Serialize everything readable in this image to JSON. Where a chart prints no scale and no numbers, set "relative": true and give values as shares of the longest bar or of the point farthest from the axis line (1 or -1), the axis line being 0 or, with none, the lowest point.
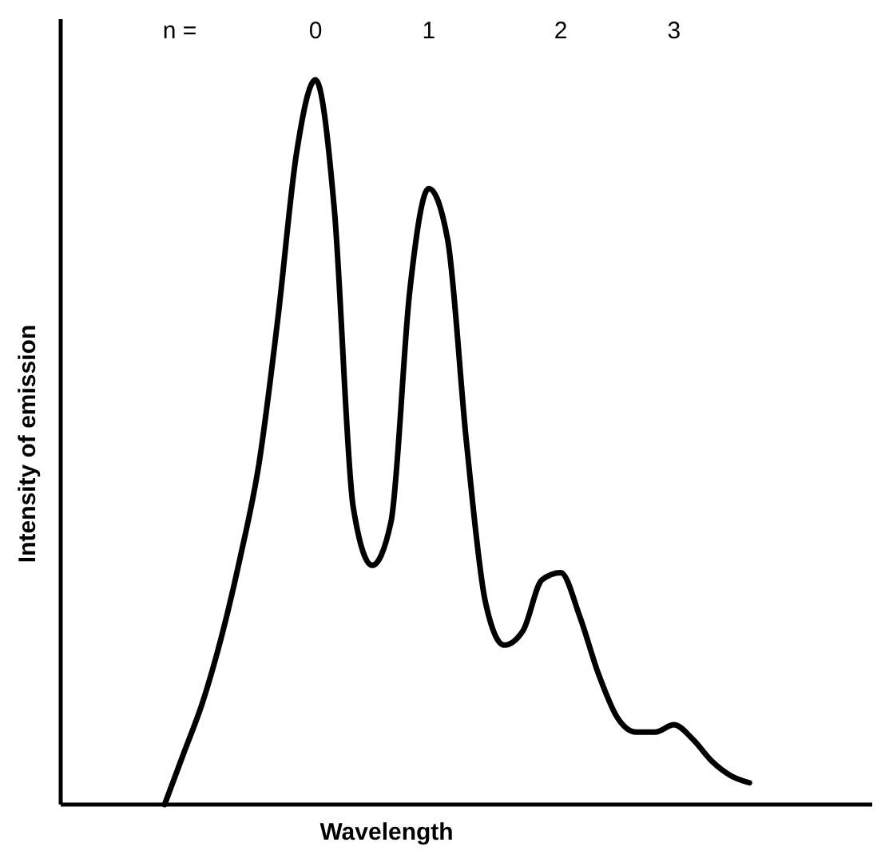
{
  "chart_data": {
    "type": "line",
    "relative": true,
    "xlabel": "Wavelength",
    "ylabel": "Intensity of emission",
    "annotations": [
      "n =",
      "0",
      "1",
      "2",
      "3"
    ],
    "categories": [
      null,
      null,
      null,
      null,
      null,
      null,
      null,
      null,
      null,
      null,
      null,
      null,
      null,
      null,
      null,
      null,
      null,
      null,
      null,
      null,
      null,
      null,
      null,
      null,
      null,
      null,
      null,
      null,
      null,
      null,
      null,
      null,
      null,
      null,
      null,
      null,
      null,
      null,
      null,
      null,
      null,
      null,
      null
    ],
    "series": [
      {
        "color": "#000000",
        "values": [
          null,
          null,
          null,
          null,
          null,
          0,
          0.07,
          0.14,
          0.23,
          0.34,
          0.47,
          0.67,
          0.9,
          1,
          0.82,
          0.41,
          0.33,
          0.39,
          0.71,
          0.85,
          0.78,
          0.5,
          0.28,
          0.22,
          0.24,
          0.31,
          0.32,
          0.26,
          0.18,
          0.12,
          0.1,
          0.1,
          0.11,
          0.09,
          0.06,
          0.04,
          0.03,
          null,
          null,
          null,
          null,
          null,
          null
        ]
      }
    ],
    "line_style": "solid"
  }
}
